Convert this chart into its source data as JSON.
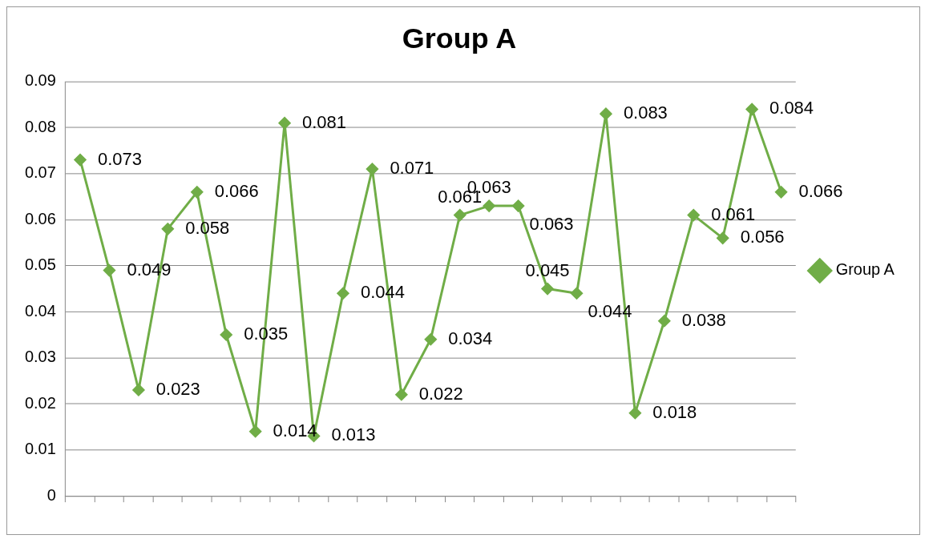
{
  "chart_data": {
    "type": "line",
    "title": "Group A",
    "categories": [
      null,
      null,
      null,
      null,
      null,
      null,
      null,
      null,
      null,
      null,
      null,
      null,
      null,
      null,
      null,
      null,
      null,
      null,
      null,
      null,
      null,
      null,
      null,
      null,
      null
    ],
    "series": [
      {
        "name": "Group A",
        "color": "#70ad47",
        "values": [
          0.073,
          0.049,
          0.023,
          0.058,
          0.066,
          0.035,
          0.014,
          0.081,
          0.013,
          0.044,
          0.071,
          0.022,
          0.034,
          0.061,
          0.063,
          0.063,
          0.045,
          0.044,
          0.083,
          0.018,
          0.038,
          0.061,
          0.056,
          0.084,
          0.066
        ]
      }
    ],
    "ylim": [
      0,
      0.09
    ],
    "yticks": [
      0,
      0.01,
      0.02,
      0.03,
      0.04,
      0.05,
      0.06,
      0.07,
      0.08,
      0.09
    ],
    "grid": "y",
    "legend": "right",
    "marker": "diamond",
    "line_style": "solid",
    "data_labels": true
  }
}
